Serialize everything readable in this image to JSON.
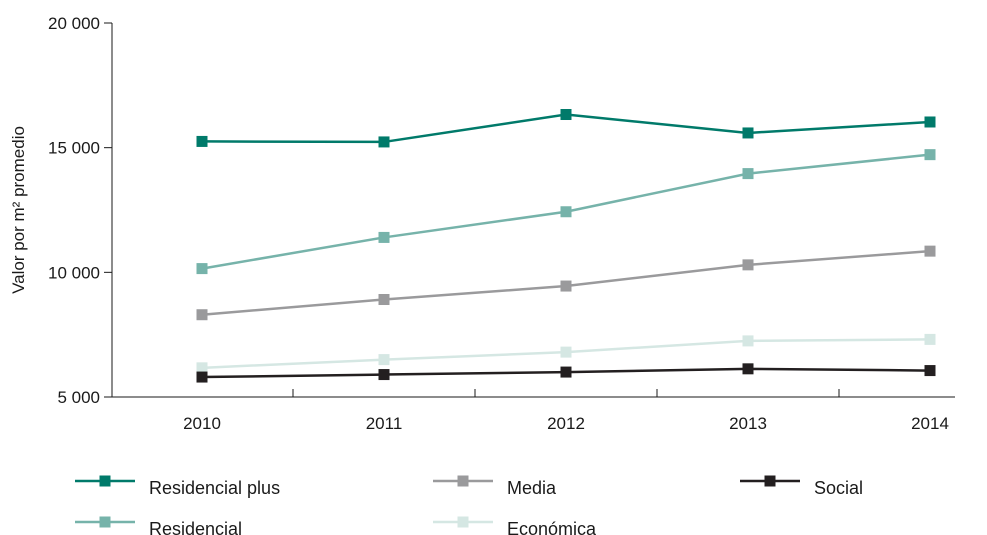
{
  "chart_data": {
    "type": "line",
    "title": "",
    "xlabel": "",
    "ylabel": "Valor por m² promedio",
    "x": [
      "2010",
      "2011",
      "2012",
      "2013",
      "2014"
    ],
    "ylim": [
      5000,
      20000
    ],
    "yticks": [
      5000,
      10000,
      15000,
      20000
    ],
    "ytick_labels": [
      "5 000",
      "10 000",
      "15 000",
      "20 000"
    ],
    "grid": false,
    "legend_position": "bottom",
    "series": [
      {
        "name": "Residencial plus",
        "color": "#007a6a",
        "values": [
          15250,
          15230,
          16330,
          15590,
          16030
        ]
      },
      {
        "name": "Residencial",
        "color": "#76b3aa",
        "values": [
          10150,
          11400,
          12430,
          13960,
          14720
        ]
      },
      {
        "name": "Media",
        "color": "#9a9a9c",
        "values": [
          8300,
          8910,
          9450,
          10300,
          10850
        ]
      },
      {
        "name": "Económica",
        "color": "#d5e7e3",
        "values": [
          6170,
          6500,
          6800,
          7250,
          7310
        ]
      },
      {
        "name": "Social",
        "color": "#231f20",
        "values": [
          5800,
          5900,
          6000,
          6130,
          6060
        ]
      }
    ]
  }
}
